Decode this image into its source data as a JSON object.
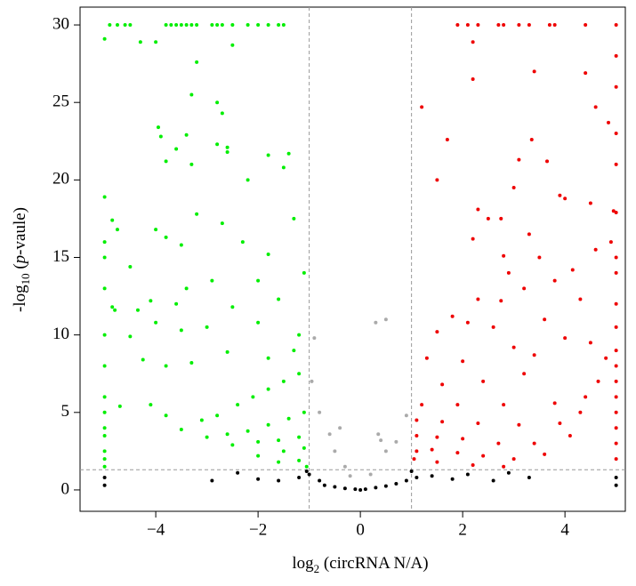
{
  "chart_data": {
    "type": "scatter",
    "xlabel": {
      "main": "log",
      "sub": "2",
      "rest": " (circRNA N/A)"
    },
    "ylabel": {
      "main": "-log",
      "sub": "10",
      "open": " (",
      "italic": "p",
      "rest": "-vaule)"
    },
    "xlim": [
      -5.48,
      5.18
    ],
    "ylim": [
      -1.38,
      31.15
    ],
    "xticks": [
      {
        "value": -4,
        "label": "−4"
      },
      {
        "value": -2,
        "label": "−2"
      },
      0,
      2,
      4
    ],
    "yticks": [
      0,
      5,
      10,
      15,
      20,
      25,
      30
    ],
    "vlines": [
      -1,
      1
    ],
    "hline": 1.3,
    "series": [
      {
        "color": "#00ee00",
        "x": [
          -4.9,
          -4.75,
          -4.6,
          -4.5,
          -3.8,
          -3.7,
          -3.6,
          -3.5,
          -3.4,
          -3.3,
          -3.2,
          -2.9,
          -2.8,
          -2.7,
          -2.5,
          -2.2,
          -2.0,
          -1.8,
          -1.6,
          -1.5,
          -5,
          -4.3,
          -4.0,
          -2.5,
          -3.2,
          -3.3,
          -2.8,
          -2.7,
          -3.95,
          -3.9,
          -3.4,
          -2.8,
          -2.6,
          -2.6,
          -1.8,
          -1.4,
          -3.6,
          -3.8,
          -3.3,
          -2.2,
          -1.5,
          -5,
          -4.85,
          -4.75,
          -4.0,
          -3.2,
          -2.7,
          -1.3,
          -3.8,
          -3.5,
          -2.3,
          -1.8,
          -4.5,
          -1.1,
          -3.4,
          -2.9,
          -2.0,
          -4.85,
          -4.8,
          -4.35,
          -4.1,
          -3.6,
          -2.5,
          -1.6,
          -4.5,
          -4.0,
          -3.5,
          -3.0,
          -2.0,
          -1.2,
          -4.25,
          -3.8,
          -3.3,
          -2.6,
          -1.8,
          -1.3,
          -4.7,
          -4.1,
          -3.8,
          -3.5,
          -3.1,
          -2.8,
          -2.4,
          -2.1,
          -1.8,
          -1.5,
          -1.2,
          -3.0,
          -2.6,
          -2.2,
          -1.8,
          -1.4,
          -1.1,
          -2.5,
          -2.0,
          -1.6,
          -1.2,
          -2.0,
          -1.5,
          -1.1,
          -1.6,
          -1.2,
          -1.05,
          -5,
          -5,
          -5,
          -5,
          -5,
          -5,
          -5,
          -5,
          -5,
          -5,
          -5,
          -5
        ],
        "values": [
          30,
          30,
          30,
          30,
          30,
          30,
          30,
          30,
          30,
          30,
          30,
          30,
          30,
          30,
          30,
          30,
          30,
          30,
          30,
          30,
          29.1,
          28.9,
          28.9,
          28.7,
          27.6,
          25.5,
          25,
          24.3,
          23.4,
          22.8,
          22.9,
          22.3,
          22.1,
          21.8,
          21.6,
          21.7,
          22.0,
          21.2,
          21.0,
          20,
          20.8,
          18.9,
          17.4,
          16.8,
          16.8,
          17.8,
          17.2,
          17.5,
          16.3,
          15.8,
          16,
          15.2,
          14.4,
          14,
          13,
          13.5,
          13.5,
          11.8,
          11.6,
          11.6,
          12.2,
          12,
          11.8,
          12.3,
          9.9,
          10.8,
          10.3,
          10.5,
          10.8,
          10,
          8.4,
          8,
          8.2,
          8.9,
          8.5,
          9,
          5.4,
          5.5,
          4.8,
          3.9,
          4.5,
          4.8,
          5.5,
          6,
          6.5,
          7,
          7.5,
          3.4,
          3.6,
          3.8,
          4.2,
          4.6,
          5,
          2.9,
          3.1,
          3.2,
          3.4,
          2.2,
          2.5,
          2.7,
          1.8,
          1.9,
          1.5,
          16,
          15,
          13,
          10,
          8,
          6,
          5,
          4,
          3.5,
          2.5,
          2,
          1.5
        ]
      },
      {
        "color": "#ee0000",
        "x": [
          1.9,
          2.1,
          2.3,
          2.7,
          2.8,
          3.1,
          3.3,
          3.7,
          3.8,
          4.4,
          5,
          2.2,
          3.4,
          2.2,
          4.4,
          1.2,
          4.6,
          1.7,
          3.35,
          4.85,
          1.5,
          3.1,
          3.65,
          3.0,
          3.9,
          4.0,
          4.5,
          5,
          4.95,
          2.3,
          2.5,
          2.75,
          2.2,
          3.3,
          4.9,
          2.8,
          3.5,
          4.6,
          2.9,
          4.15,
          2.3,
          3.2,
          3.8,
          4.3,
          1.8,
          2.75,
          3.6,
          1.5,
          2.1,
          2.6,
          4.0,
          4.5,
          1.3,
          2.0,
          3.0,
          3.4,
          4.8,
          1.6,
          2.4,
          3.2,
          4.65,
          1.2,
          1.9,
          2.8,
          3.8,
          4.4,
          1.1,
          1.6,
          2.3,
          3.1,
          3.9,
          4.3,
          1.1,
          1.5,
          2.0,
          2.7,
          3.4,
          4.1,
          1.1,
          1.4,
          1.9,
          2.4,
          3.0,
          3.6,
          1.05,
          1.5,
          2.2,
          2.8,
          5,
          5,
          5,
          5,
          5,
          5,
          5,
          5,
          5,
          5,
          5,
          5,
          5,
          5,
          5,
          5
        ],
        "values": [
          30,
          30,
          30,
          30,
          30,
          30,
          30,
          30,
          30,
          30,
          30,
          28.9,
          27,
          26.5,
          26.9,
          24.7,
          24.7,
          22.6,
          22.6,
          23.7,
          20,
          21.3,
          21.2,
          19.5,
          19,
          18.8,
          18.5,
          17.9,
          18,
          18.1,
          17.5,
          17.5,
          16.2,
          16.5,
          16,
          15.1,
          15,
          15.5,
          14,
          14.2,
          12.3,
          13,
          13.5,
          12.3,
          11.2,
          12.2,
          11,
          10.2,
          10.8,
          10.5,
          9.8,
          9.5,
          8.5,
          8.3,
          9.2,
          8.7,
          8.5,
          6.8,
          7,
          7.5,
          7,
          5.5,
          5.5,
          5.5,
          5.6,
          6,
          4.5,
          4.4,
          4.3,
          4.2,
          4.3,
          5,
          3.5,
          3.4,
          3.3,
          3.0,
          3.0,
          3.5,
          2.5,
          2.6,
          2.4,
          2.2,
          2.0,
          2.3,
          2.0,
          1.8,
          1.6,
          1.5,
          28,
          26,
          23,
          21,
          15,
          14,
          12,
          10.5,
          9,
          8,
          7,
          6,
          5,
          4,
          3,
          2
        ]
      },
      {
        "color": "#aaaaaa",
        "x": [
          -0.9,
          -0.95,
          -0.6,
          -0.4,
          0.35,
          0.5,
          0.4,
          0.9,
          0.7,
          -0.8,
          -0.5,
          -0.3,
          0.2,
          -0.2,
          0.5,
          0.3
        ],
        "values": [
          9.8,
          7,
          3.6,
          4,
          3.6,
          2.5,
          3.2,
          4.8,
          3.1,
          5,
          2.5,
          1.5,
          1,
          0.9,
          11,
          10.8
        ]
      },
      {
        "color": "#000000",
        "x": [
          -5,
          -5,
          5,
          5,
          -2.9,
          -2.4,
          -2.0,
          -1.6,
          -1.2,
          -1.0,
          -0.8,
          -0.7,
          -0.5,
          -0.3,
          -0.1,
          0,
          0.1,
          0.3,
          0.5,
          0.7,
          0.9,
          1.1,
          1.4,
          1.8,
          2.1,
          2.6,
          2.9,
          3.3,
          1.0,
          -1.05
        ],
        "values": [
          0.3,
          0.8,
          0.3,
          0.8,
          0.6,
          1.1,
          0.7,
          0.6,
          0.8,
          1.0,
          0.6,
          0.3,
          0.2,
          0.1,
          0.05,
          0,
          0.05,
          0.15,
          0.25,
          0.4,
          0.6,
          0.8,
          0.9,
          0.7,
          1.0,
          0.6,
          1.1,
          0.8,
          1.2,
          1.2
        ]
      }
    ]
  }
}
